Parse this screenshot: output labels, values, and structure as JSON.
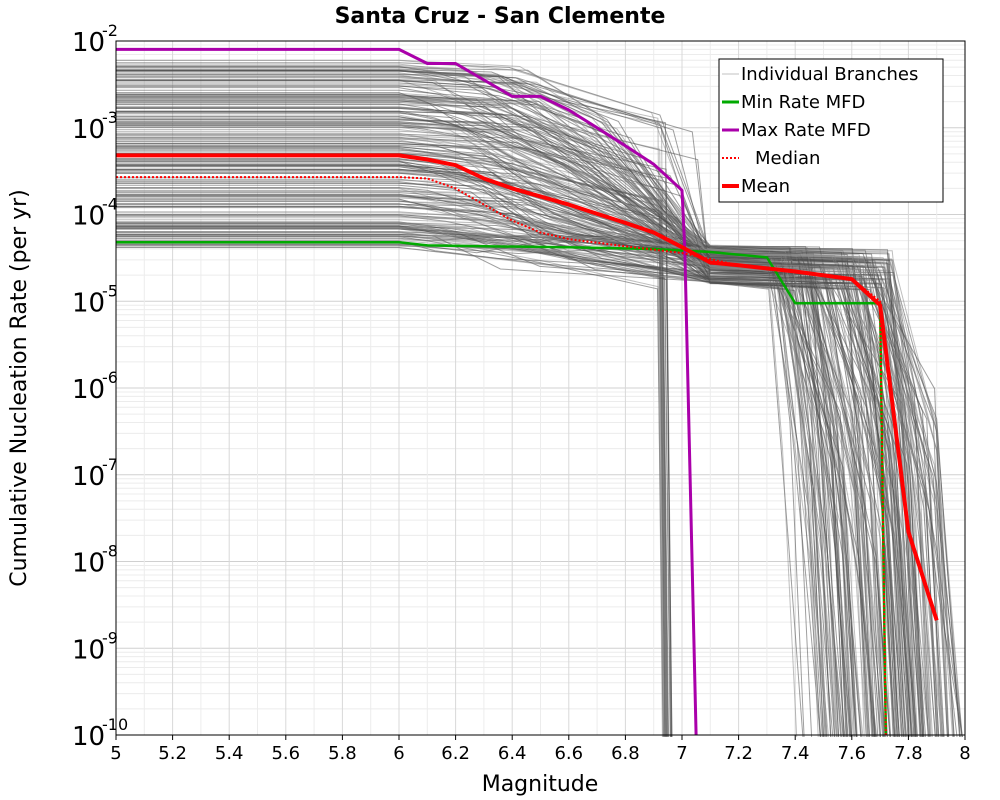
{
  "chart_data": {
    "type": "line",
    "title": "Santa Cruz - San Clemente",
    "xlabel": "Magnitude",
    "ylabel": "Cumulative Nucleation Rate (per yr)",
    "xlim": [
      5,
      8
    ],
    "ylim_log10": [
      -10,
      -2
    ],
    "yscale": "log",
    "grid": true,
    "legend_position": "top-right",
    "x_ticks": [
      "5",
      "5.2",
      "5.4",
      "5.6",
      "5.8",
      "6",
      "6.2",
      "6.4",
      "6.6",
      "6.8",
      "7",
      "7.2",
      "7.4",
      "7.6",
      "7.8",
      "8"
    ],
    "y_ticks": [
      {
        "base": "10",
        "exp": "-2"
      },
      {
        "base": "10",
        "exp": "-3"
      },
      {
        "base": "10",
        "exp": "-4"
      },
      {
        "base": "10",
        "exp": "-5"
      },
      {
        "base": "10",
        "exp": "-6"
      },
      {
        "base": "10",
        "exp": "-7"
      },
      {
        "base": "10",
        "exp": "-8"
      },
      {
        "base": "10",
        "exp": "-9"
      },
      {
        "base": "10",
        "exp": "-10"
      }
    ],
    "legend": [
      {
        "label": "Individual Branches",
        "color": "#c0c0c0",
        "style": "solid-thin"
      },
      {
        "label": "Min Rate MFD",
        "color": "#00aa00",
        "style": "solid"
      },
      {
        "label": "Max Rate MFD",
        "color": "#aa00aa",
        "style": "solid"
      },
      {
        "label": "Median",
        "color": "#ff0000",
        "style": "dotted"
      },
      {
        "label": "Mean",
        "color": "#ff0000",
        "style": "solid-thick"
      }
    ],
    "series": [
      {
        "name": "Min Rate MFD",
        "color": "#00aa00",
        "width": 2.5,
        "dash": "",
        "x": [
          5.0,
          6.0,
          6.1,
          6.3,
          6.6,
          6.9,
          7.1,
          7.3,
          7.4,
          7.6,
          7.7,
          7.72
        ],
        "y": [
          4.8e-05,
          4.8e-05,
          4.4e-05,
          4.3e-05,
          4.2e-05,
          4e-05,
          3.7e-05,
          3.2e-05,
          9.5e-06,
          9.5e-06,
          9.5e-06,
          1e-10
        ]
      },
      {
        "name": "Max Rate MFD",
        "color": "#aa00aa",
        "width": 3,
        "dash": "",
        "x": [
          5.0,
          6.0,
          6.1,
          6.2,
          6.4,
          6.5,
          6.6,
          6.7,
          6.8,
          6.9,
          7.0,
          7.01,
          7.05
        ],
        "y": [
          0.008,
          0.008,
          0.0055,
          0.0055,
          0.0023,
          0.0023,
          0.0016,
          0.001,
          0.00062,
          0.00038,
          0.00019,
          4e-05,
          1e-10
        ]
      },
      {
        "name": "Median",
        "color": "#ff0000",
        "width": 2,
        "dash": "2,2",
        "x": [
          5.0,
          6.0,
          6.1,
          6.2,
          6.3,
          6.4,
          6.5,
          6.6,
          6.8,
          7.0,
          7.2,
          7.4,
          7.6,
          7.7,
          7.72
        ],
        "y": [
          0.00027,
          0.00027,
          0.00026,
          0.0002,
          0.00013,
          8.5e-05,
          6.2e-05,
          5.2e-05,
          4.3e-05,
          3.6e-05,
          2.6e-05,
          2.2e-05,
          1.8e-05,
          1e-05,
          1e-10
        ]
      },
      {
        "name": "Mean",
        "color": "#ff0000",
        "width": 4,
        "dash": "",
        "x": [
          5.0,
          6.0,
          6.1,
          6.2,
          6.3,
          6.4,
          6.6,
          6.8,
          6.9,
          7.0,
          7.1,
          7.2,
          7.4,
          7.6,
          7.7,
          7.8,
          7.9
        ],
        "y": [
          0.00048,
          0.00048,
          0.00043,
          0.00037,
          0.00026,
          0.0002,
          0.00013,
          8e-05,
          6.2e-05,
          4.2e-05,
          2.8e-05,
          2.6e-05,
          2.2e-05,
          1.8e-05,
          9e-06,
          2.2e-08,
          2.1e-09
        ]
      }
    ]
  }
}
